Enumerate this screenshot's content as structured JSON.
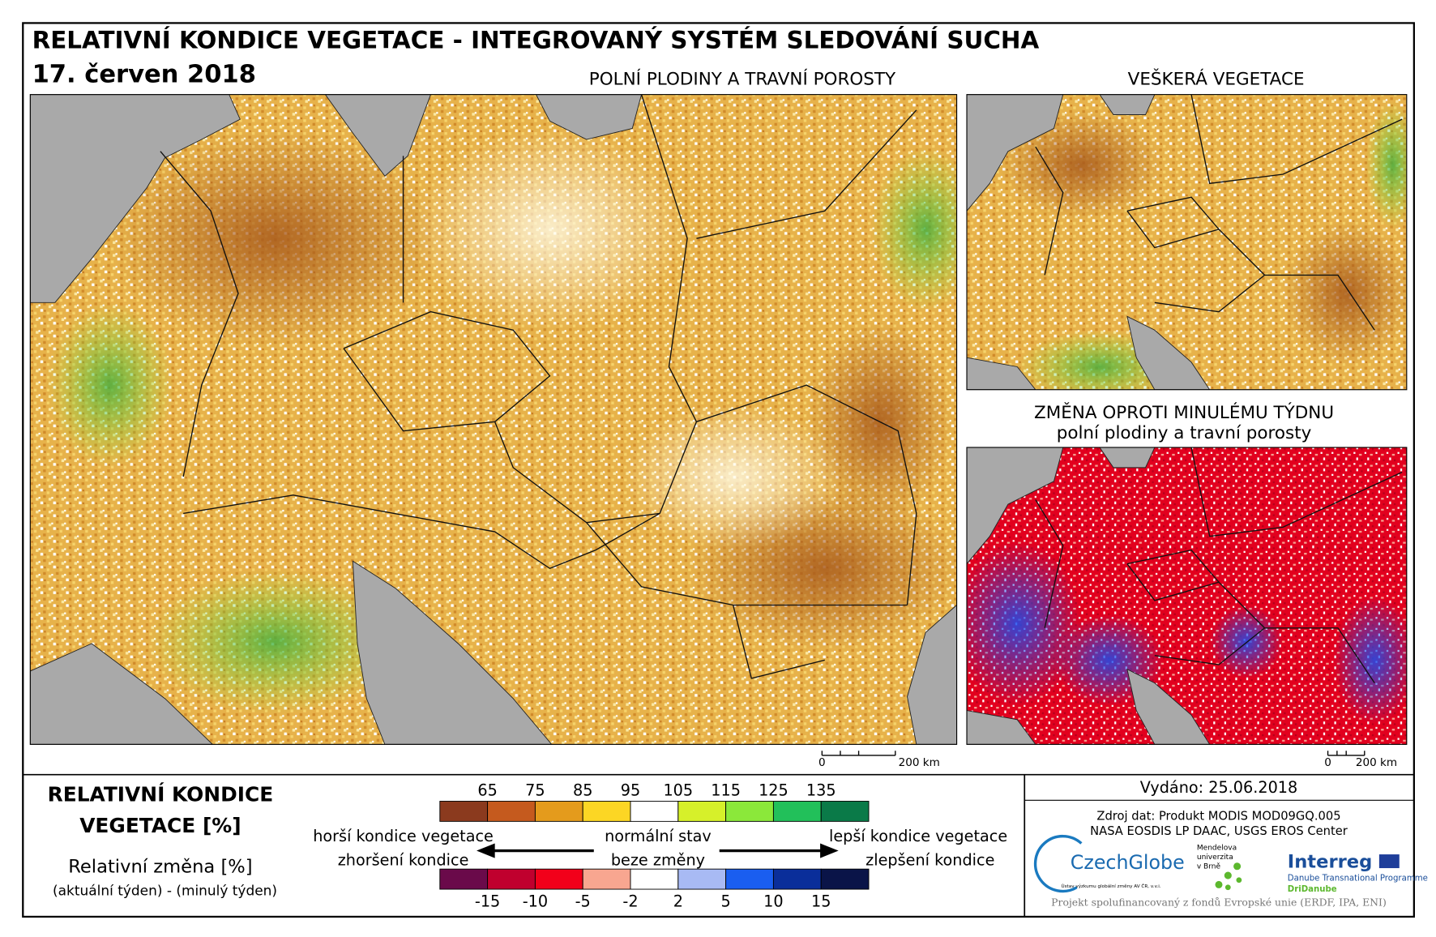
{
  "header": {
    "title": "RELATIVNÍ KONDICE VEGETACE - INTEGROVANÝ SYSTÉM SLEDOVÁNÍ SUCHA",
    "date": "17. červen 2018"
  },
  "panels": [
    {
      "title": [
        "POLNÍ PLODINY A TRAVNÍ POROSTY"
      ],
      "scale_labels": [
        "0",
        "200 km"
      ]
    },
    {
      "title": [
        "VEŠKERÁ VEGETACE"
      ]
    },
    {
      "title": [
        "ZMĚNA OPROTI MINULÉMU TÝDNU",
        "polní plodiny a travní porosty"
      ],
      "scale_labels": [
        "0",
        "200 km"
      ]
    }
  ],
  "legend": {
    "condition_title": [
      "RELATIVNÍ KONDICE",
      "VEGETACE [%]"
    ],
    "condition_ticks": [
      65,
      75,
      85,
      95,
      105,
      115,
      125,
      135
    ],
    "condition_colors": [
      "#8b3a1e",
      "#c55a1e",
      "#e49b1c",
      "#fcd624",
      "#ffffff",
      "#d6f02a",
      "#8be83a",
      "#22c05a",
      "#0a7a48"
    ],
    "change_title": "Relativní změna [%]",
    "change_subtitle": "(aktuální týden) - (minulý týden)",
    "change_ticks": [
      -15,
      -10,
      -5,
      -2,
      2,
      5,
      10,
      15
    ],
    "change_colors": [
      "#6a0a4a",
      "#c0002e",
      "#f2001a",
      "#f8a690",
      "#ffffff",
      "#a8baf4",
      "#1a5ef0",
      "#0a2e9a",
      "#0a1448"
    ],
    "worse": "horší kondice vegetace",
    "normal": "normální stav",
    "better": "lepší kondice vegetace",
    "decline": "zhoršení kondice",
    "no_change": "beze změny",
    "improvement": "zlepšení kondice"
  },
  "footer": {
    "issued": "Vydáno: 25.06.2018",
    "source": [
      "Zdroj dat: Produkt MODIS MOD09GQ.005",
      "NASA EOSDIS LP DAAC, USGS EROS Center"
    ],
    "czechglobe": "CzechGlobe",
    "czechglobe_sub": "Ústav výzkumu globální změny AV ČR, v.v.i.",
    "mendel": [
      "Mendelova",
      "univerzita",
      "v Brně"
    ],
    "interreg": "Interreg",
    "interreg_sub": "Danube Transnational Programme",
    "dridanube": "DriDanube",
    "funding": "Projekt spolufinancovaný z fondů Evropské unie (ERDF, IPA, ENI)"
  }
}
